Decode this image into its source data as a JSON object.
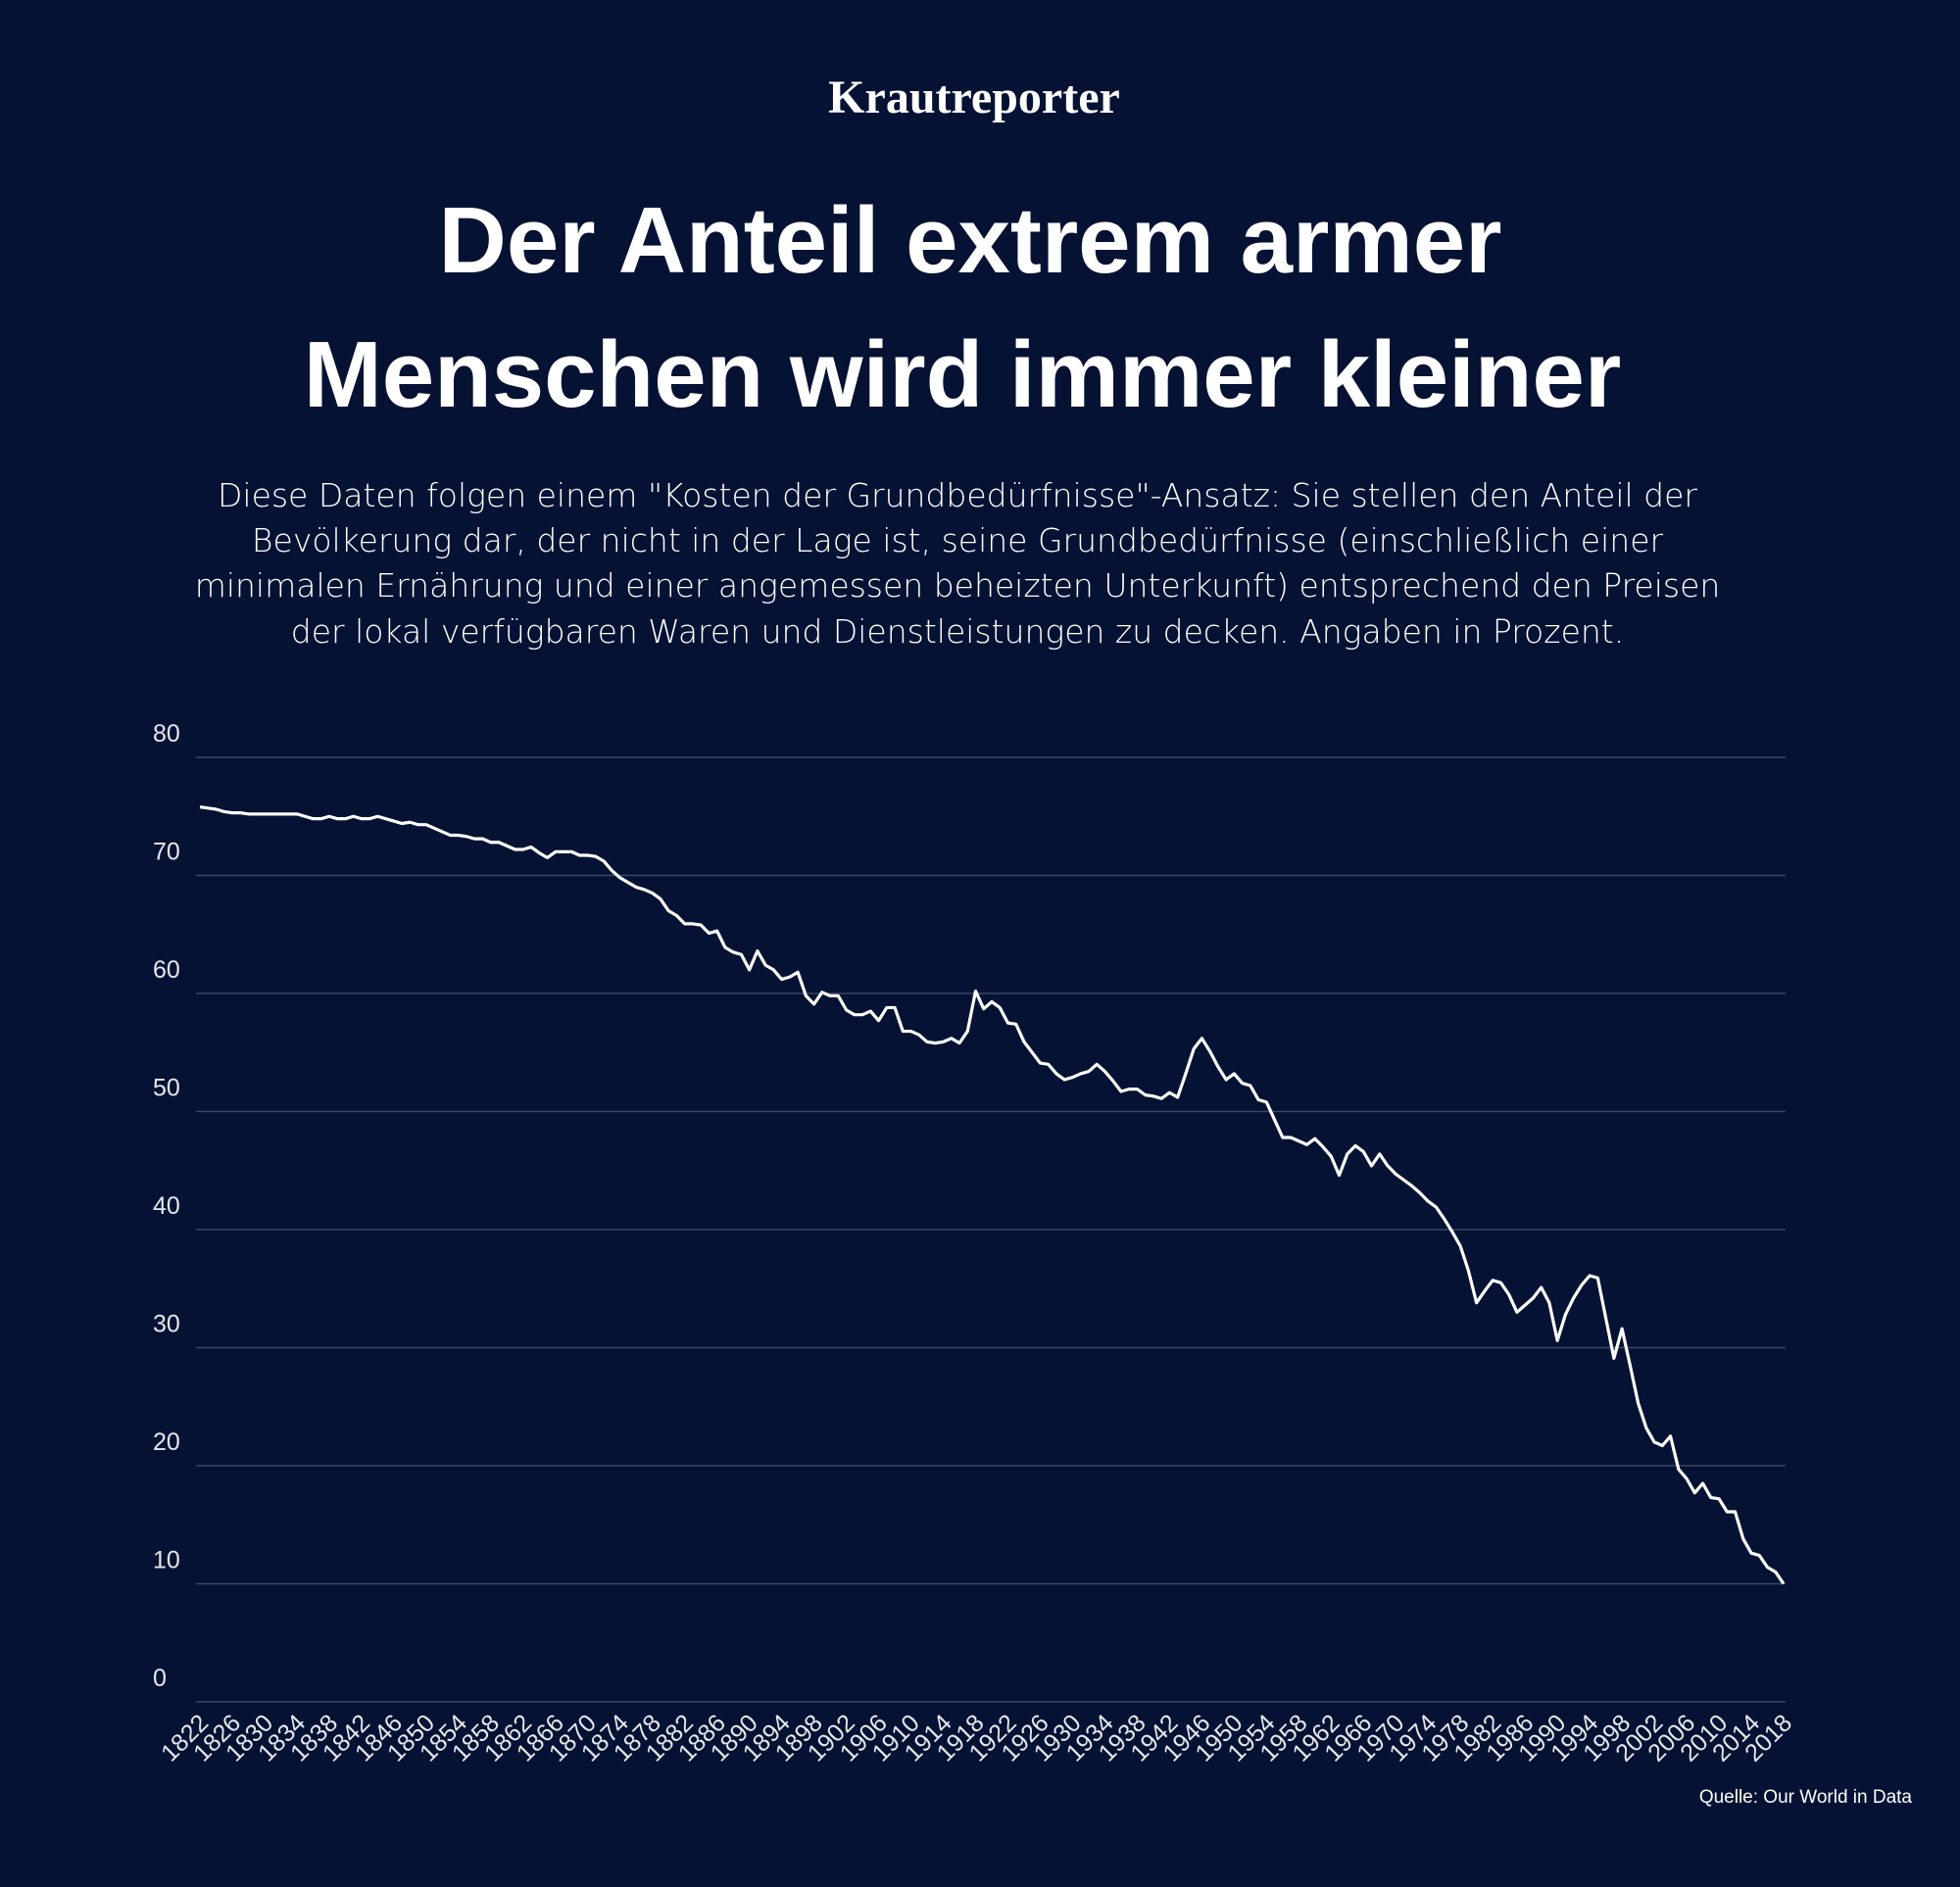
{
  "brand": "Krautreporter",
  "chart_data": {
    "type": "line",
    "title": [
      "Der Anteil extrem armer",
      "Menschen wird immer kleiner"
    ],
    "subtitle": [
      "Diese Daten folgen einem \"Kosten der Grundbedürfnisse\"-Ansatz: Sie stellen den Anteil der",
      "Bevölkerung dar, der nicht in der Lage ist, seine Grundbedürfnisse (einschließlich einer",
      "minimalen Ernährung und einer angemessen beheizten Unterkunft) entsprechend den Preisen",
      "der lokal verfügbaren Waren und Dienstleistungen zu decken. Angaben in Prozent."
    ],
    "source": "Quelle: Our World in Data",
    "xstart": 1822,
    "series": [
      {
        "color": "#ffffff",
        "values": [
          75.8,
          75.7,
          75.6,
          75.4,
          75.3,
          75.3,
          75.2,
          75.2,
          75.2,
          75.2,
          75.2,
          75.2,
          75.2,
          75.0,
          74.8,
          74.8,
          75.0,
          74.8,
          74.8,
          75.0,
          74.8,
          74.8,
          75.0,
          74.8,
          74.6,
          74.4,
          74.5,
          74.3,
          74.3,
          74.0,
          73.7,
          73.4,
          73.4,
          73.3,
          73.1,
          73.1,
          72.8,
          72.8,
          72.5,
          72.2,
          72.2,
          72.4,
          71.9,
          71.5,
          72.0,
          72.0,
          72.0,
          71.7,
          71.7,
          71.6,
          71.2,
          70.4,
          69.8,
          69.4,
          69.0,
          68.8,
          68.5,
          68.0,
          67.0,
          66.6,
          65.9,
          65.9,
          65.8,
          65.1,
          65.3,
          63.9,
          63.5,
          63.3,
          62.0,
          63.6,
          62.4,
          62.0,
          61.2,
          61.4,
          61.8,
          59.8,
          59.1,
          60.1,
          59.8,
          59.8,
          58.6,
          58.2,
          58.2,
          58.5,
          57.7,
          58.8,
          58.8,
          56.8,
          56.8,
          56.5,
          55.9,
          55.8,
          55.9,
          56.2,
          55.8,
          56.8,
          60.2,
          58.7,
          59.3,
          58.8,
          57.5,
          57.4,
          55.9,
          55.0,
          54.1,
          54.0,
          53.2,
          52.7,
          52.9,
          53.2,
          53.4,
          54.0,
          53.4,
          52.6,
          51.7,
          51.9,
          51.9,
          51.4,
          51.3,
          51.1,
          51.6,
          51.2,
          53.2,
          55.3,
          56.2,
          55.1,
          53.8,
          52.7,
          53.2,
          52.4,
          52.2,
          51.0,
          50.8,
          49.3,
          47.8,
          47.8,
          47.5,
          47.2,
          47.7,
          47.0,
          46.2,
          44.6,
          46.4,
          47.1,
          46.6,
          45.4,
          46.4,
          45.4,
          44.7,
          44.2,
          43.7,
          43.1,
          42.4,
          41.9,
          40.9,
          39.8,
          38.6,
          36.5,
          33.8,
          34.8,
          35.7,
          35.5,
          34.5,
          33.0,
          33.6,
          34.2,
          35.1,
          33.8,
          30.6,
          32.8,
          34.2,
          35.3,
          36.1,
          35.9,
          32.5,
          29.1,
          31.6,
          28.5,
          25.3,
          23.2,
          22.0,
          21.7,
          22.5,
          19.7,
          18.9,
          17.7,
          18.5,
          17.3,
          17.2,
          16.1,
          16.1,
          13.8,
          12.6,
          12.4,
          11.4,
          11.0,
          10.0
        ]
      }
    ],
    "xlim": [
      1822,
      2018
    ],
    "xticks": [
      1822,
      1826,
      1830,
      1834,
      1838,
      1842,
      1846,
      1850,
      1854,
      1858,
      1862,
      1866,
      1870,
      1874,
      1878,
      1882,
      1886,
      1890,
      1894,
      1898,
      1902,
      1906,
      1910,
      1914,
      1918,
      1922,
      1926,
      1930,
      1934,
      1938,
      1942,
      1946,
      1950,
      1954,
      1958,
      1962,
      1966,
      1970,
      1974,
      1978,
      1982,
      1986,
      1990,
      1994,
      1998,
      2002,
      2006,
      2010,
      2014,
      2018
    ],
    "ylim": [
      0,
      80
    ],
    "yticks": [
      0,
      10,
      20,
      30,
      40,
      50,
      60,
      70,
      80
    ],
    "grid": true
  }
}
